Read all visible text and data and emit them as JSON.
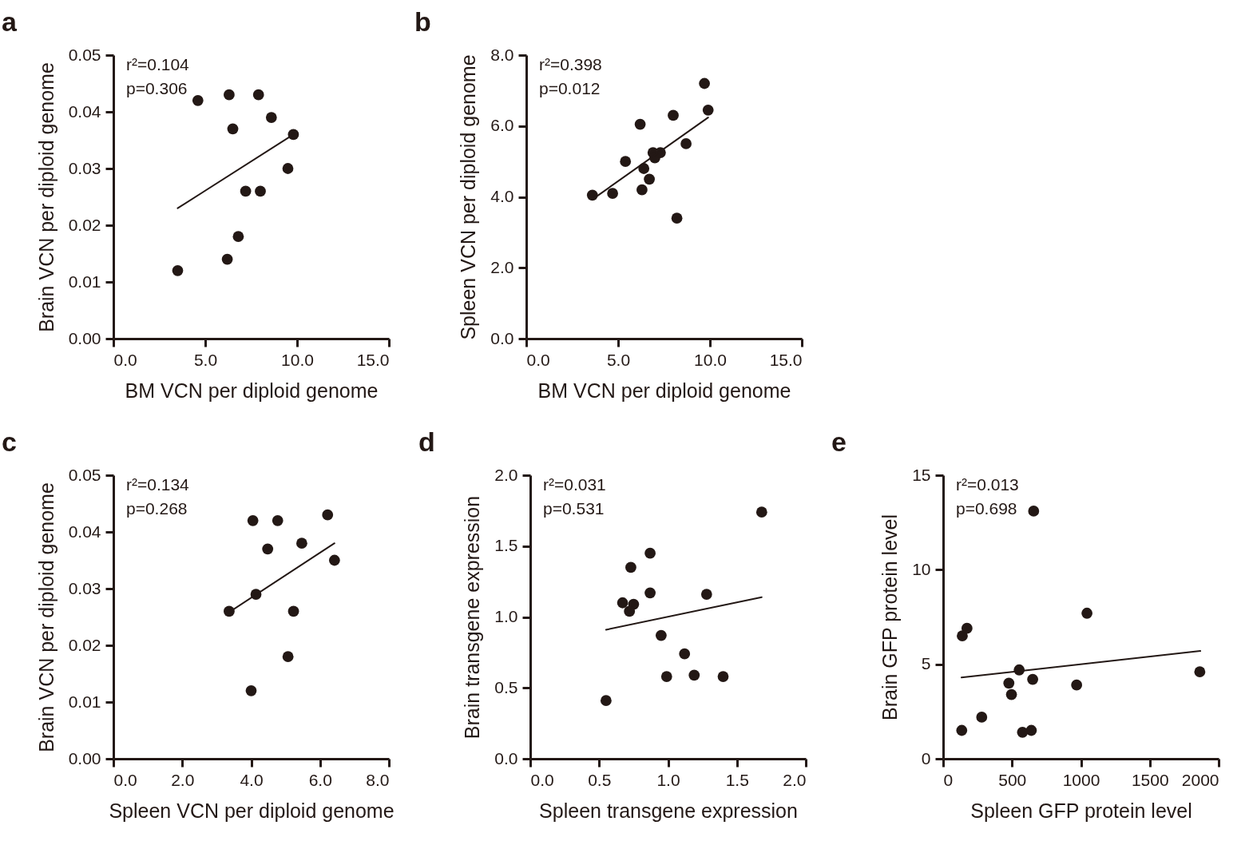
{
  "chart_data": [
    {
      "type": "scatter",
      "title": "a",
      "xlabel": "BM VCN per diploid genome",
      "ylabel": "Brain VCN per diploid genome",
      "xlim": [
        0,
        15
      ],
      "ylim": [
        0,
        0.05
      ],
      "xticks": [
        {
          "value": 0,
          "label": "0.0"
        },
        {
          "value": 5,
          "label": "5.0"
        },
        {
          "value": 10,
          "label": "10.0"
        },
        {
          "value": 15,
          "label": "15.0"
        }
      ],
      "yticks": [
        {
          "value": 0,
          "label": "0.00"
        },
        {
          "value": 0.01,
          "label": "0.01"
        },
        {
          "value": 0.02,
          "label": "0.02"
        },
        {
          "value": 0.03,
          "label": "0.03"
        },
        {
          "value": 0.04,
          "label": "0.04"
        },
        {
          "value": 0.05,
          "label": "0.05"
        }
      ],
      "annotations": [
        "r²=0.104",
        "p=0.306"
      ],
      "series": [
        {
          "marker": "circle",
          "color": "#231815",
          "x": [
            3.5,
            4.6,
            6.3,
            6.5,
            6.2,
            6.8,
            7.2,
            7.9,
            8.0,
            8.6,
            9.5,
            9.8
          ],
          "values": [
            0.012,
            0.042,
            0.043,
            0.037,
            0.014,
            0.018,
            0.026,
            0.043,
            0.026,
            0.039,
            0.03,
            0.036
          ]
        },
        {
          "type": "line",
          "color": "#231815",
          "x": [
            3.5,
            9.8
          ],
          "values": [
            0.023,
            0.036
          ]
        }
      ]
    },
    {
      "type": "scatter",
      "title": "b",
      "xlabel": "BM VCN per diploid genome",
      "ylabel": "Spleen VCN per diploid genome",
      "xlim": [
        0,
        15
      ],
      "ylim": [
        0,
        8
      ],
      "xticks": [
        {
          "value": 0,
          "label": "0.0"
        },
        {
          "value": 5,
          "label": "5.0"
        },
        {
          "value": 10,
          "label": "10.0"
        },
        {
          "value": 15,
          "label": "15.0"
        }
      ],
      "yticks": [
        {
          "value": 0,
          "label": "0.0"
        },
        {
          "value": 2,
          "label": "2.0"
        },
        {
          "value": 4,
          "label": "4.0"
        },
        {
          "value": 6,
          "label": "6.0"
        },
        {
          "value": 8,
          "label": "8.0"
        }
      ],
      "annotations": [
        "r²=0.398",
        "p=0.012"
      ],
      "series": [
        {
          "marker": "circle",
          "color": "#231815",
          "x": [
            3.6,
            4.7,
            5.4,
            6.2,
            6.3,
            6.4,
            6.7,
            6.9,
            7.0,
            7.3,
            8.0,
            8.2,
            8.7,
            9.7,
            9.9
          ],
          "values": [
            4.05,
            4.1,
            5.0,
            6.05,
            4.2,
            4.8,
            4.5,
            5.25,
            5.1,
            5.25,
            6.3,
            3.4,
            5.5,
            7.2,
            6.45
          ]
        },
        {
          "type": "line",
          "color": "#231815",
          "x": [
            3.6,
            9.9
          ],
          "values": [
            3.93,
            6.24
          ]
        }
      ]
    },
    {
      "type": "scatter",
      "title": "c",
      "xlabel": "Spleen VCN per diploid genome",
      "ylabel": "Brain VCN per diploid genome",
      "xlim": [
        0,
        8
      ],
      "ylim": [
        0,
        0.05
      ],
      "xticks": [
        {
          "value": 0,
          "label": "0.0"
        },
        {
          "value": 2,
          "label": "2.0"
        },
        {
          "value": 4,
          "label": "4.0"
        },
        {
          "value": 6,
          "label": "6.0"
        },
        {
          "value": 8,
          "label": "8.0"
        }
      ],
      "yticks": [
        {
          "value": 0,
          "label": "0.00"
        },
        {
          "value": 0.01,
          "label": "0.01"
        },
        {
          "value": 0.02,
          "label": "0.02"
        },
        {
          "value": 0.03,
          "label": "0.03"
        },
        {
          "value": 0.04,
          "label": "0.04"
        },
        {
          "value": 0.05,
          "label": "0.05"
        }
      ],
      "annotations": [
        "r²=0.134",
        "p=0.268"
      ],
      "series": [
        {
          "marker": "circle",
          "color": "#231815",
          "x": [
            3.36,
            4.05,
            4.0,
            4.14,
            4.48,
            4.77,
            5.07,
            5.23,
            5.47,
            6.22,
            6.42
          ],
          "values": [
            0.026,
            0.042,
            0.012,
            0.029,
            0.037,
            0.042,
            0.018,
            0.026,
            0.038,
            0.043,
            0.035
          ]
        },
        {
          "type": "line",
          "color": "#231815",
          "x": [
            3.4,
            6.42
          ],
          "values": [
            0.026,
            0.038
          ]
        }
      ]
    },
    {
      "type": "scatter",
      "title": "d",
      "xlabel": "Spleen transgene expression",
      "ylabel": "Brain transgene expression",
      "xlim": [
        0,
        2
      ],
      "ylim": [
        0,
        2
      ],
      "xticks": [
        {
          "value": 0,
          "label": "0.0"
        },
        {
          "value": 0.5,
          "label": "0.5"
        },
        {
          "value": 1,
          "label": "1.0"
        },
        {
          "value": 1.5,
          "label": "1.5"
        },
        {
          "value": 2,
          "label": "2.0"
        }
      ],
      "yticks": [
        {
          "value": 0,
          "label": "0.0"
        },
        {
          "value": 0.5,
          "label": "0.5"
        },
        {
          "value": 1,
          "label": "1.0"
        },
        {
          "value": 1.5,
          "label": "1.5"
        },
        {
          "value": 2,
          "label": "2.0"
        }
      ],
      "annotations": [
        "r²=0.031",
        "p=0.531"
      ],
      "series": [
        {
          "marker": "circle",
          "color": "#231815",
          "x": [
            0.55,
            0.67,
            0.75,
            0.72,
            0.73,
            0.87,
            0.87,
            0.95,
            0.99,
            1.12,
            1.19,
            1.28,
            1.4,
            1.68
          ],
          "values": [
            0.41,
            1.1,
            1.09,
            1.04,
            1.35,
            1.45,
            1.17,
            0.87,
            0.58,
            0.74,
            0.59,
            1.16,
            0.58,
            1.74
          ]
        },
        {
          "type": "line",
          "color": "#231815",
          "x": [
            0.55,
            1.68
          ],
          "values": [
            0.91,
            1.14
          ]
        }
      ]
    },
    {
      "type": "scatter",
      "title": "e",
      "xlabel": "Spleen GFP protein level",
      "ylabel": "Brain GFP protein level",
      "xlim": [
        0,
        2000
      ],
      "ylim": [
        0,
        15
      ],
      "xticks": [
        0,
        500,
        1000,
        1500,
        2000
      ],
      "yticks": [
        0,
        5,
        10,
        15
      ],
      "annotations": [
        "r²=0.013",
        "p=0.698"
      ],
      "series": [
        {
          "marker": "circle",
          "color": "#231815",
          "x": [
            135,
            280,
            139,
            173,
            477,
            496,
            552,
            576,
            640,
            650,
            657,
            969,
            1044,
            1863
          ],
          "values": [
            1.5,
            2.2,
            6.5,
            6.9,
            4.0,
            3.4,
            4.7,
            1.4,
            1.5,
            4.2,
            13.1,
            3.9,
            7.7,
            4.6
          ]
        },
        {
          "type": "line",
          "color": "#231815",
          "x": [
            133,
            1867
          ],
          "values": [
            4.3,
            5.7
          ]
        }
      ]
    }
  ]
}
